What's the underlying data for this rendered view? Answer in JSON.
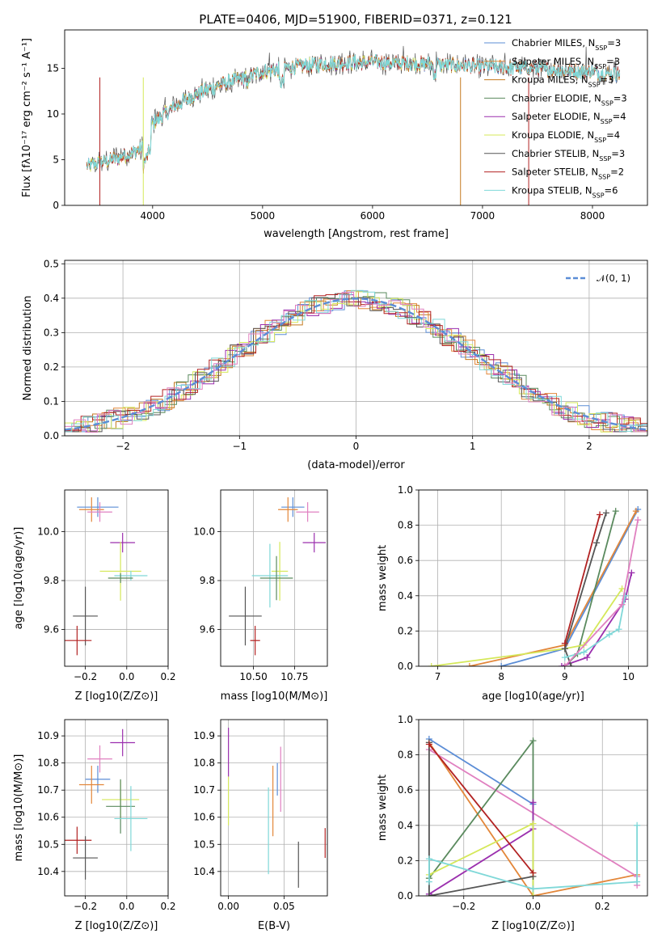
{
  "title": "PLATE=0406, MJD=51900, FIBERID=0371, z=0.121",
  "colors": {
    "Chabrier MILES": "#5b8dd6",
    "Salpeter MILES": "#e3873a",
    "Kroupa MILES": "#c47a1f",
    "Chabrier ELODIE": "#5a8a5e",
    "Salpeter ELODIE": "#9b2fae",
    "Kroupa ELODIE": "#d5e85a",
    "Chabrier STELIB": "#555555",
    "Salpeter STELIB": "#b22222",
    "Kroupa STELIB": "#7fd8d8",
    "pink": "#e080c0"
  },
  "chart_data": [
    {
      "type": "line",
      "panel": "spectrum",
      "xlabel": "wavelength [Angstrom, rest frame]",
      "ylabel": "Flux [fλ10⁻¹⁷ erg cm⁻² s⁻¹ A⁻¹]",
      "xlim": [
        3200,
        8500
      ],
      "ylim": [
        0,
        19.2
      ],
      "xticks": [
        "4000",
        "5000",
        "6000",
        "7000",
        "8000"
      ],
      "yticks": [
        "0",
        "5",
        "10",
        "15"
      ],
      "legend_position": "top-right",
      "series": [
        {
          "name": "Chabrier MILES, N_SSP=3"
        },
        {
          "name": "Salpeter MILES, N_SSP=3"
        },
        {
          "name": "Kroupa MILES, N_SSP=3"
        },
        {
          "name": "Chabrier ELODIE, N_SSP=3"
        },
        {
          "name": "Salpeter ELODIE, N_SSP=4"
        },
        {
          "name": "Kroupa ELODIE, N_SSP=4"
        },
        {
          "name": "Chabrier STELIB, N_SSP=3"
        },
        {
          "name": "Salpeter STELIB, N_SSP=2"
        },
        {
          "name": "Kroupa STELIB, N_SSP=6"
        }
      ],
      "continuum": {
        "x": [
          3400,
          3500,
          3700,
          3900,
          4000,
          4200,
          4400,
          4600,
          4800,
          5000,
          5200,
          5400,
          5600,
          5800,
          6000,
          6200,
          6400,
          6600,
          6800,
          7000,
          7200,
          7400,
          7600,
          7800,
          8000,
          8200
        ],
        "y": [
          4.3,
          4.6,
          5.2,
          6.2,
          9.0,
          10.8,
          12.2,
          13.1,
          13.9,
          14.6,
          15.0,
          15.3,
          15.5,
          15.6,
          15.7,
          15.6,
          15.5,
          15.4,
          15.3,
          15.2,
          15.1,
          15.0,
          14.9,
          14.7,
          14.6,
          14.4
        ]
      }
    },
    {
      "type": "line",
      "panel": "residual histogram",
      "xlabel": "(data-model)/error",
      "ylabel": "Normed distribution",
      "xlim": [
        -2.5,
        2.5
      ],
      "ylim": [
        0,
        0.51
      ],
      "xticks": [
        "−2",
        "−1",
        "0",
        "1",
        "2"
      ],
      "yticks": [
        "0.0",
        "0.1",
        "0.2",
        "0.3",
        "0.4",
        "0.5"
      ],
      "legend": "𝒩(0, 1)",
      "reference": "Gaussian mean 0 sigma 1"
    },
    {
      "type": "scatter",
      "panel": "age vs metallicity",
      "xlabel": "Z [log10(Z/Z⊙)]",
      "ylabel": "age  [log10(age/yr)]",
      "xlim": [
        -0.3,
        0.2
      ],
      "ylim": [
        9.45,
        10.17
      ],
      "xticks": [
        "−0.2",
        "0.0",
        "0.2"
      ],
      "yticks": [
        "9.6",
        "9.8",
        "10.0"
      ],
      "points": [
        {
          "c": "Chabrier MILES",
          "x": -0.14,
          "y": 10.1,
          "xe": 0.1,
          "ye": 0.04
        },
        {
          "c": "Salpeter MILES",
          "x": -0.17,
          "y": 10.09,
          "xe": 0.06,
          "ye": 0.05
        },
        {
          "c": "pink",
          "x": -0.13,
          "y": 10.08,
          "xe": 0.06,
          "ye": 0.04
        },
        {
          "c": "Salpeter ELODIE",
          "x": -0.02,
          "y": 9.955,
          "xe": 0.06,
          "ye": 0.04
        },
        {
          "c": "Kroupa ELODIE",
          "x": -0.03,
          "y": 9.838,
          "xe": 0.1,
          "ye": 0.12
        },
        {
          "c": "Kroupa STELIB",
          "x": 0.02,
          "y": 9.82,
          "xe": 0.08,
          "ye": 0.02
        },
        {
          "c": "Chabrier ELODIE",
          "x": -0.03,
          "y": 9.81,
          "xe": 0.06,
          "ye": 0.02
        },
        {
          "c": "Chabrier STELIB",
          "x": -0.2,
          "y": 9.655,
          "xe": 0.06,
          "ye": 0.12
        },
        {
          "c": "Salpeter STELIB",
          "x": -0.24,
          "y": 9.555,
          "xe": 0.07,
          "ye": 0.06
        }
      ]
    },
    {
      "type": "scatter",
      "panel": "age vs mass",
      "xlabel": "mass [log10(M/M⊙)]",
      "ylabel": "",
      "xlim": [
        10.3,
        10.95
      ],
      "ylim": [
        9.45,
        10.17
      ],
      "xticks": [
        "10.50",
        "10.75"
      ],
      "yticks": [
        "9.6",
        "9.8",
        "10.0"
      ],
      "points": [
        {
          "c": "Chabrier MILES",
          "x": 10.74,
          "y": 10.1,
          "xe": 0.07,
          "ye": 0.04
        },
        {
          "c": "Salpeter MILES",
          "x": 10.71,
          "y": 10.09,
          "xe": 0.06,
          "ye": 0.05
        },
        {
          "c": "pink",
          "x": 10.83,
          "y": 10.08,
          "xe": 0.07,
          "ye": 0.04
        },
        {
          "c": "Salpeter ELODIE",
          "x": 10.87,
          "y": 9.955,
          "xe": 0.07,
          "ye": 0.04
        },
        {
          "c": "Kroupa ELODIE",
          "x": 10.66,
          "y": 9.838,
          "xe": 0.05,
          "ye": 0.12
        },
        {
          "c": "Kroupa STELIB",
          "x": 10.6,
          "y": 9.82,
          "xe": 0.11,
          "ye": 0.13
        },
        {
          "c": "Chabrier ELODIE",
          "x": 10.64,
          "y": 9.81,
          "xe": 0.1,
          "ye": 0.09
        },
        {
          "c": "Chabrier STELIB",
          "x": 10.45,
          "y": 9.655,
          "xe": 0.1,
          "ye": 0.12
        },
        {
          "c": "Salpeter STELIB",
          "x": 10.51,
          "y": 9.555,
          "xe": 0.03,
          "ye": 0.06
        }
      ]
    },
    {
      "type": "line",
      "panel": "cumulative mass weight vs age",
      "xlabel": "age  [log10(age/yr)]",
      "ylabel": "mass weight",
      "xlim": [
        6.7,
        10.3
      ],
      "ylim": [
        0,
        1.0
      ],
      "xticks": [
        "7",
        "8",
        "9",
        "10"
      ],
      "yticks": [
        "0.0",
        "0.2",
        "0.4",
        "0.6",
        "0.8",
        "1.0"
      ],
      "series": [
        {
          "c": "Chabrier MILES",
          "x": [
            8.0,
            9.0,
            10.15
          ],
          "y": [
            0.0,
            0.1,
            0.89
          ]
        },
        {
          "c": "Salpeter MILES",
          "x": [
            7.5,
            9.0,
            10.12
          ],
          "y": [
            0.0,
            0.12,
            0.88
          ]
        },
        {
          "c": "Chabrier ELODIE",
          "x": [
            9.0,
            9.2,
            9.8
          ],
          "y": [
            0.0,
            0.07,
            0.88
          ]
        },
        {
          "c": "Salpeter ELODIE",
          "x": [
            8.95,
            9.35,
            9.95,
            10.05
          ],
          "y": [
            0.0,
            0.05,
            0.38,
            0.53
          ]
        },
        {
          "c": "Kroupa ELODIE",
          "x": [
            6.9,
            9.0,
            9.3,
            9.9
          ],
          "y": [
            0.0,
            0.1,
            0.12,
            0.44
          ]
        },
        {
          "c": "Chabrier STELIB",
          "x": [
            9.1,
            9.0,
            9.5,
            9.65
          ],
          "y": [
            0.0,
            0.1,
            0.7,
            0.87
          ]
        },
        {
          "c": "Salpeter STELIB",
          "x": [
            9.0,
            9.55
          ],
          "y": [
            0.13,
            0.86
          ]
        },
        {
          "c": "Kroupa STELIB",
          "x": [
            9.0,
            9.3,
            9.7,
            9.85,
            9.95
          ],
          "y": [
            0.05,
            0.08,
            0.18,
            0.21,
            0.4
          ]
        },
        {
          "c": "pink",
          "x": [
            9.0,
            9.9,
            10.15
          ],
          "y": [
            0.0,
            0.35,
            0.83
          ]
        }
      ]
    },
    {
      "type": "scatter",
      "panel": "mass vs metallicity",
      "xlabel": "Z [log10(Z/Z⊙)]",
      "ylabel": "mass [log10(M/M⊙)]",
      "xlim": [
        -0.3,
        0.2
      ],
      "ylim": [
        10.31,
        10.96
      ],
      "xticks": [
        "−0.2",
        "0.0",
        "0.2"
      ],
      "yticks": [
        "10.4",
        "10.5",
        "10.6",
        "10.7",
        "10.8",
        "10.9"
      ],
      "points": [
        {
          "c": "Salpeter ELODIE",
          "x": -0.02,
          "y": 10.875,
          "xe": 0.06,
          "ye": 0.05
        },
        {
          "c": "pink",
          "x": -0.13,
          "y": 10.815,
          "xe": 0.06,
          "ye": 0.05
        },
        {
          "c": "Chabrier MILES",
          "x": -0.14,
          "y": 10.74,
          "xe": 0.06,
          "ye": 0.05
        },
        {
          "c": "Salpeter MILES",
          "x": -0.17,
          "y": 10.72,
          "xe": 0.06,
          "ye": 0.07
        },
        {
          "c": "Kroupa ELODIE",
          "x": -0.03,
          "y": 10.665,
          "xe": 0.09,
          "ye": 0.07
        },
        {
          "c": "Chabrier ELODIE",
          "x": -0.03,
          "y": 10.64,
          "xe": 0.07,
          "ye": 0.1
        },
        {
          "c": "Kroupa STELIB",
          "x": 0.02,
          "y": 10.595,
          "xe": 0.08,
          "ye": 0.12
        },
        {
          "c": "Salpeter STELIB",
          "x": -0.24,
          "y": 10.515,
          "xe": 0.07,
          "ye": 0.05
        },
        {
          "c": "Chabrier STELIB",
          "x": -0.2,
          "y": 10.45,
          "xe": 0.06,
          "ye": 0.08
        }
      ]
    },
    {
      "type": "scatter",
      "panel": "mass vs E(B-V)",
      "xlabel": "E(B-V)",
      "ylabel": "",
      "xlim": [
        -0.007,
        0.089
      ],
      "ylim": [
        10.31,
        10.96
      ],
      "xticks": [
        "0.00",
        "0.05"
      ],
      "yticks": [
        "10.4",
        "10.5",
        "10.6",
        "10.7",
        "10.8",
        "10.9"
      ],
      "points": [
        {
          "c": "Salpeter ELODIE",
          "x": 0.0,
          "y": 10.84,
          "ye": 0.09
        },
        {
          "c": "Kroupa ELODIE",
          "x": 0.0,
          "y": 10.66,
          "ye": 0.09
        },
        {
          "c": "pink",
          "x": 0.047,
          "y": 10.74,
          "ye": 0.12
        },
        {
          "c": "Chabrier MILES",
          "x": 0.044,
          "y": 10.74,
          "ye": 0.06
        },
        {
          "c": "Salpeter MILES",
          "x": 0.04,
          "y": 10.66,
          "ye": 0.13
        },
        {
          "c": "Kroupa STELIB",
          "x": 0.036,
          "y": 10.55,
          "ye": 0.16
        },
        {
          "c": "Chabrier STELIB",
          "x": 0.063,
          "y": 10.425,
          "ye": 0.085
        },
        {
          "c": "Salpeter STELIB",
          "x": 0.087,
          "y": 10.505,
          "ye": 0.055
        }
      ]
    },
    {
      "type": "line",
      "panel": "cumulative mass weight vs metallicity",
      "xlabel": "Z [log10(Z/Z⊙)]",
      "ylabel": "mass weight",
      "xlim": [
        -0.33,
        0.33
      ],
      "ylim": [
        0,
        1.0
      ],
      "xticks": [
        "−0.2",
        "0.0",
        "0.2"
      ],
      "yticks": [
        "0.0",
        "0.2",
        "0.4",
        "0.6",
        "0.8",
        "1.0"
      ],
      "series": [
        {
          "c": "Chabrier MILES",
          "x": [
            -0.3,
            0.0
          ],
          "y": [
            0.89,
            0.52
          ]
        },
        {
          "c": "Salpeter MILES",
          "x": [
            -0.3,
            0.0,
            0.3
          ],
          "y": [
            0.87,
            0.0,
            0.12
          ]
        },
        {
          "c": "pink",
          "x": [
            -0.3,
            0.3,
            0.3
          ],
          "y": [
            0.83,
            0.11,
            0.06
          ]
        },
        {
          "c": "Chabrier ELODIE",
          "x": [
            -0.3,
            0.0,
            0.0
          ],
          "y": [
            0.1,
            0.88,
            0.0
          ]
        },
        {
          "c": "Salpeter ELODIE",
          "x": [
            -0.3,
            0.0,
            0.0
          ],
          "y": [
            0.01,
            0.38,
            0.53
          ]
        },
        {
          "c": "Kroupa ELODIE",
          "x": [
            -0.3,
            0.0,
            0.0
          ],
          "y": [
            0.12,
            0.41,
            0.0
          ]
        },
        {
          "c": "Chabrier STELIB",
          "x": [
            -0.3,
            -0.3,
            0.0
          ],
          "y": [
            0.87,
            0.0,
            0.11
          ]
        },
        {
          "c": "Salpeter STELIB",
          "x": [
            -0.3,
            0.0
          ],
          "y": [
            0.86,
            0.13
          ]
        },
        {
          "c": "Kroupa STELIB",
          "x": [
            -0.3,
            -0.3,
            0.0,
            0.3,
            0.3
          ],
          "y": [
            0.08,
            0.21,
            0.04,
            0.08,
            0.4
          ]
        }
      ]
    }
  ]
}
